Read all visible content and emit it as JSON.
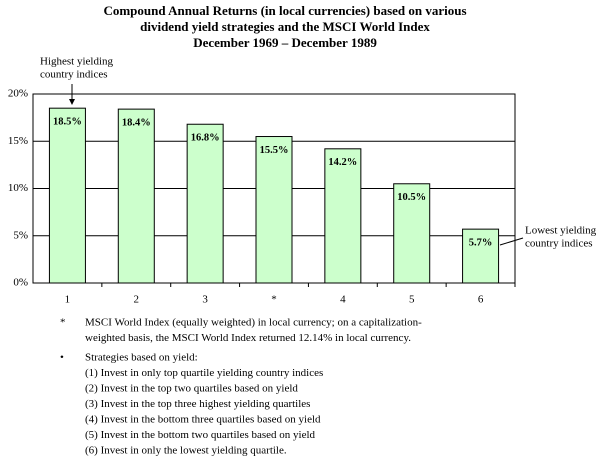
{
  "chart_data": {
    "type": "bar",
    "title": [
      "Compound Annual Returns (in local currencies) based on various",
      "dividend yield strategies and the MSCI World Index",
      "December 1969 – December 1989"
    ],
    "categories": [
      "1",
      "2",
      "3",
      "*",
      "4",
      "5",
      "6"
    ],
    "values": [
      18.5,
      18.4,
      16.8,
      15.5,
      14.2,
      10.5,
      5.7
    ],
    "value_labels": [
      "18.5%",
      "18.4%",
      "16.8%",
      "15.5%",
      "14.2%",
      "10.5%",
      "5.7%"
    ],
    "color": "#ccffcc",
    "ylim": [
      0,
      20
    ],
    "yticks": [
      {
        "value": 0,
        "label": "0%"
      },
      {
        "value": 5,
        "label": "5%"
      },
      {
        "value": 10,
        "label": "10%"
      },
      {
        "value": 15,
        "label": "15%"
      },
      {
        "value": 20,
        "label": "20%"
      }
    ],
    "grid": true,
    "annotations": [
      {
        "lines": [
          "Highest yielding",
          "country indices"
        ]
      },
      {
        "lines": [
          "Lowest yielding",
          "country indices"
        ]
      }
    ],
    "notes": [
      {
        "marker": "*",
        "lines": [
          "MSCI World Index (equally weighted) in local currency; on a capitalization-",
          "weighted basis, the MSCI World Index returned 12.14% in local currency."
        ]
      },
      {
        "marker": "•",
        "lines": [
          "Strategies based on yield:",
          "(1) Invest in only top quartile yielding country indices",
          "(2) Invest in the top two quartiles based on yield",
          "(3) Invest in the top three highest yielding quartiles",
          "(4) Invest in the bottom three quartiles based on yield",
          "(5) Invest in the bottom two quartiles based on yield",
          "(6) Invest in only the lowest yielding quartile."
        ]
      }
    ]
  }
}
